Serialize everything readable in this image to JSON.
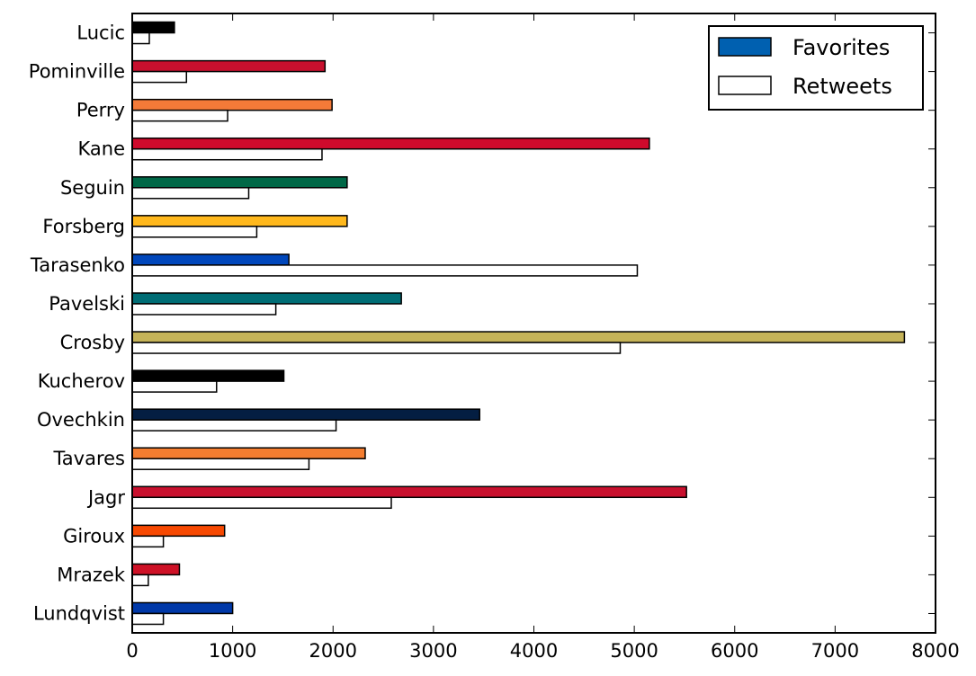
{
  "chart_data": {
    "type": "bar",
    "orientation": "horizontal",
    "categories": [
      "Lucic",
      "Pominville",
      "Perry",
      "Kane",
      "Seguin",
      "Forsberg",
      "Tarasenko",
      "Pavelski",
      "Crosby",
      "Kucherov",
      "Ovechkin",
      "Tavares",
      "Jagr",
      "Giroux",
      "Mrazek",
      "Lundqvist"
    ],
    "series": [
      {
        "name": "Favorites",
        "values": [
          420,
          1920,
          1990,
          5150,
          2140,
          2140,
          1560,
          2680,
          7690,
          1510,
          3460,
          2320,
          5520,
          920,
          470,
          1000
        ],
        "colors": [
          "#000000",
          "#c8102e",
          "#f47a38",
          "#cf0a2c",
          "#006847",
          "#ffb81c",
          "#0047bb",
          "#006d75",
          "#c5b358",
          "#000000",
          "#041e42",
          "#f47d30",
          "#c8102e",
          "#f74902",
          "#ce1126",
          "#0038a8"
        ]
      },
      {
        "name": "Retweets",
        "values": [
          170,
          540,
          950,
          1890,
          1160,
          1240,
          5030,
          1430,
          4860,
          840,
          2030,
          1760,
          2580,
          310,
          160,
          310
        ],
        "color": "#ffffff"
      }
    ],
    "x_ticks": [
      "0",
      "1000",
      "2000",
      "3000",
      "4000",
      "5000",
      "6000",
      "7000",
      "8000"
    ],
    "xlim": [
      0,
      8000
    ],
    "title": "",
    "xlabel": "",
    "ylabel": "",
    "legend_placement": "top-right",
    "legend_patch_color": "#0060b0",
    "grid": false
  }
}
